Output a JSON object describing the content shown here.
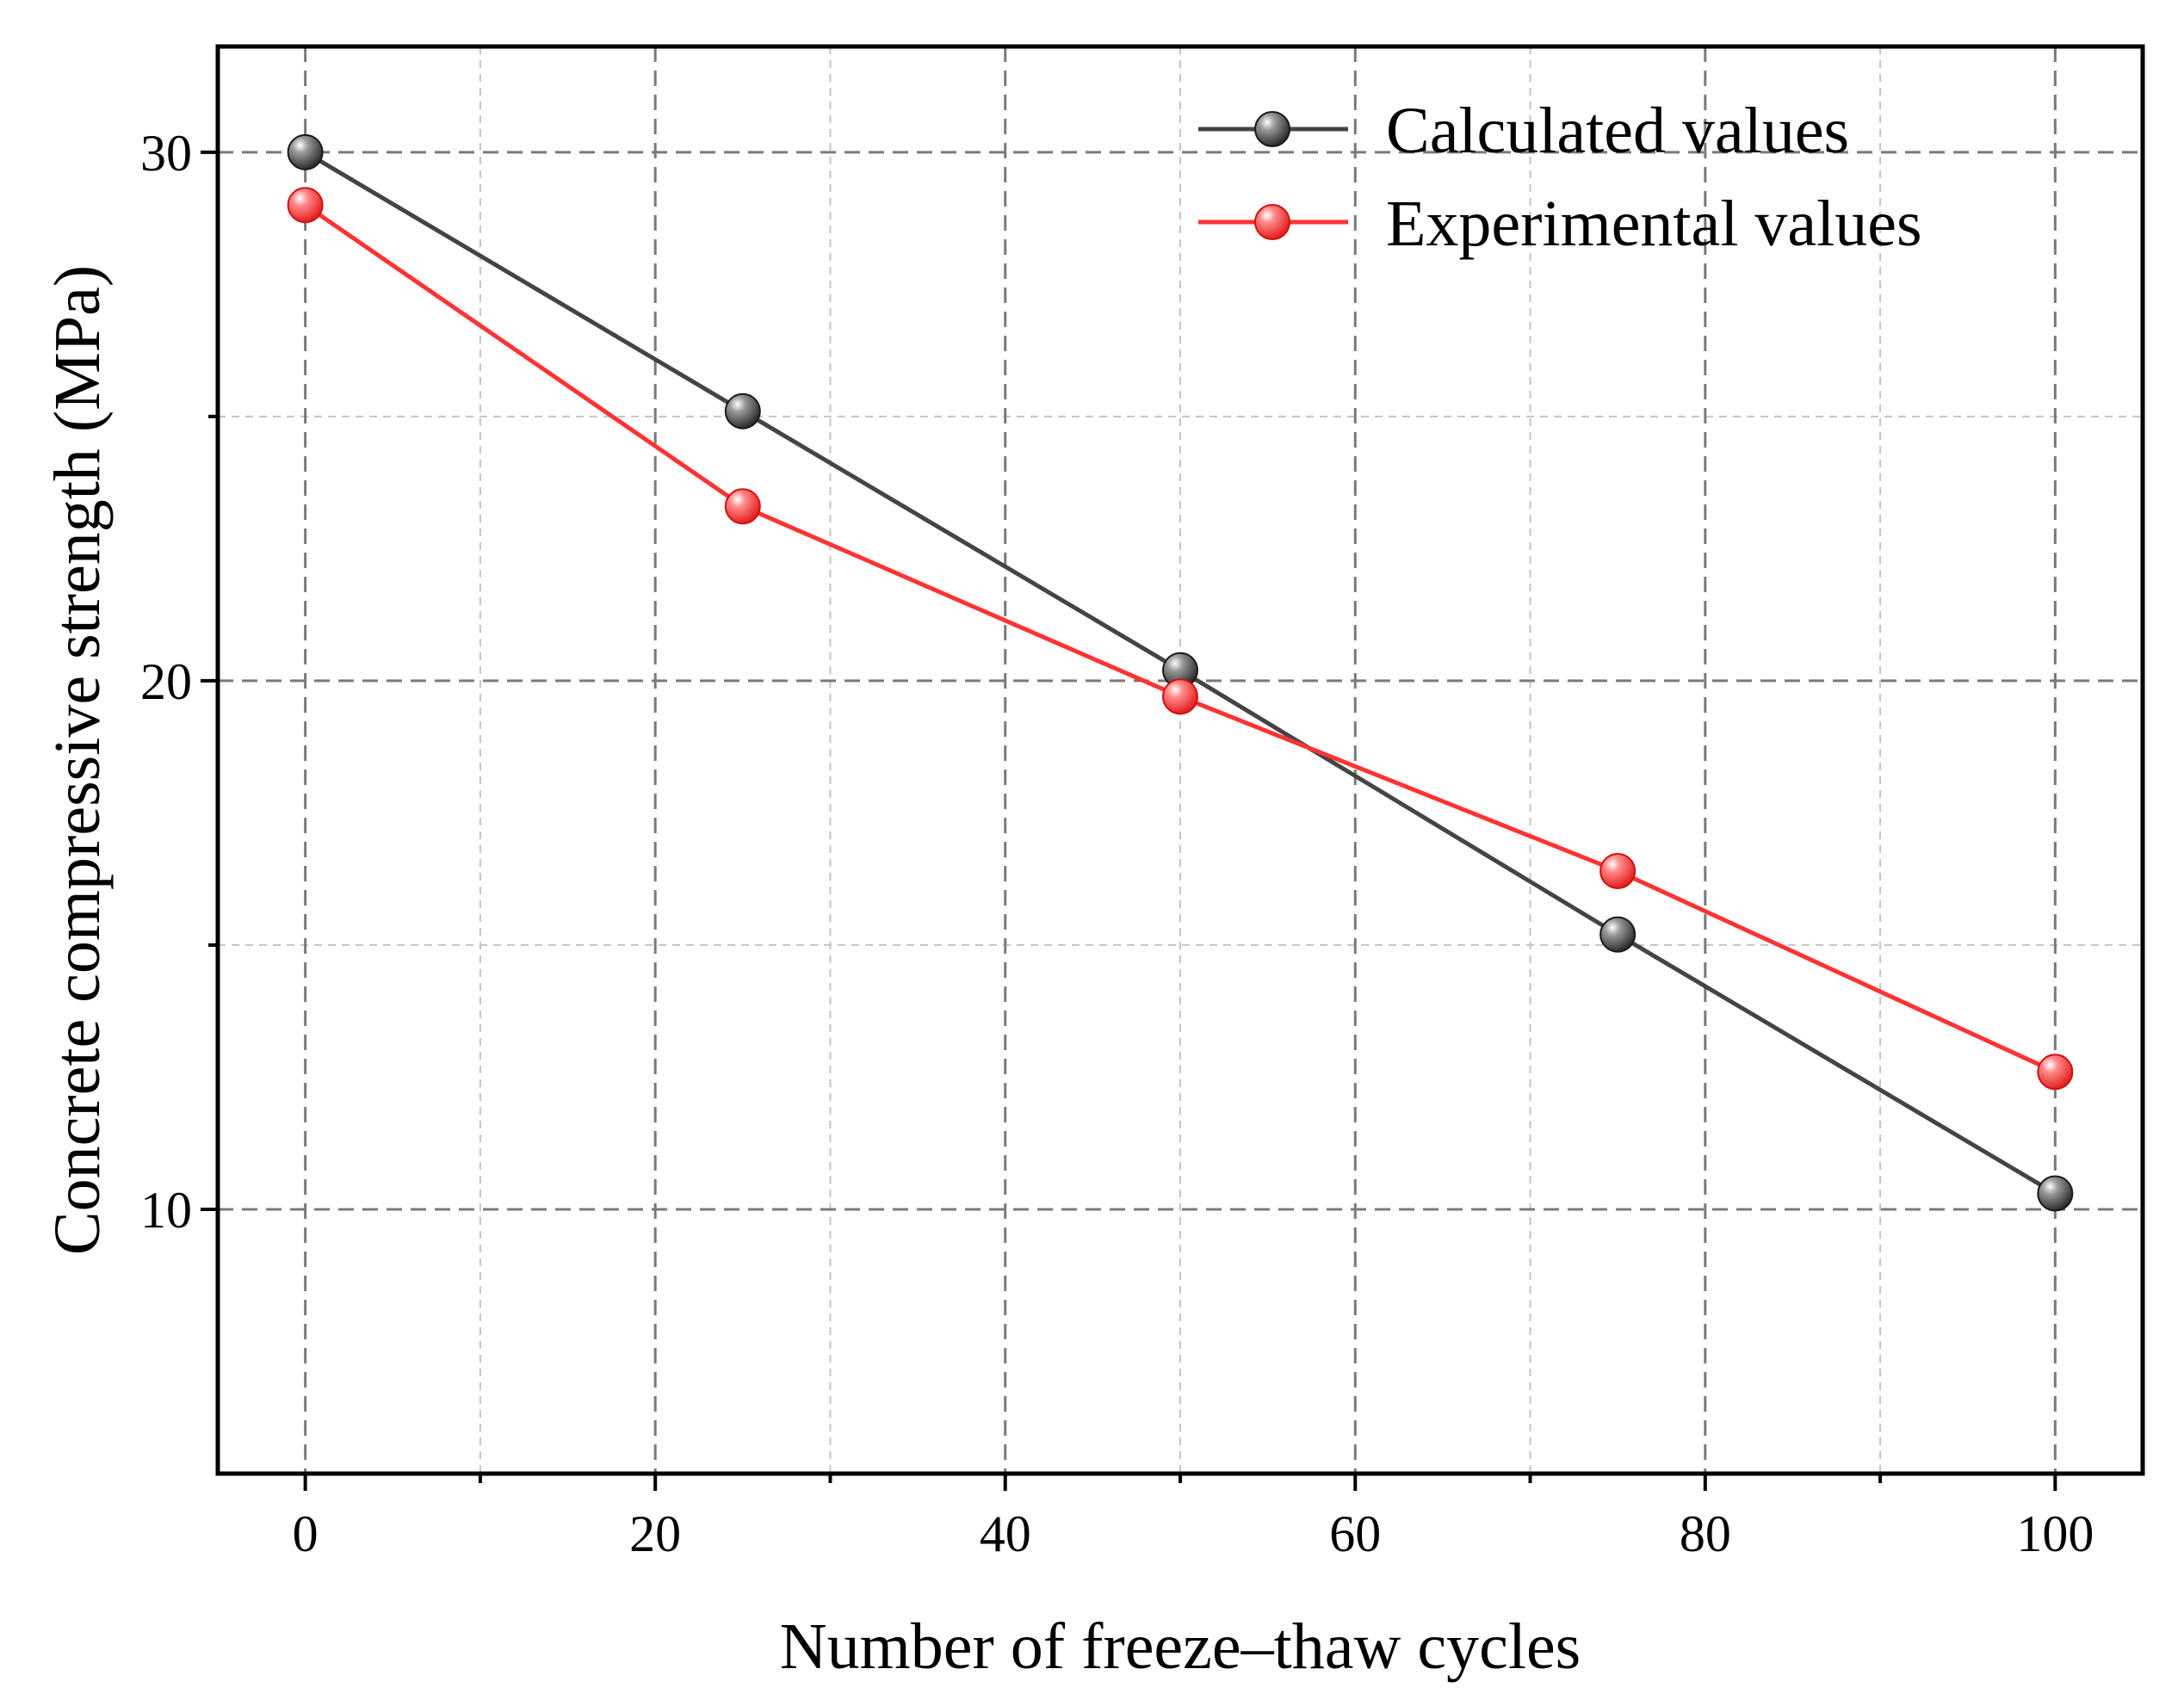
{
  "chart_data": {
    "type": "line",
    "title": "",
    "xlabel": "Number of freeze–thaw cycles",
    "ylabel": "Concrete compressive strength (MPa)",
    "xlim": [
      -5,
      105
    ],
    "ylim": [
      5,
      32
    ],
    "x_major_ticks": [
      0,
      20,
      40,
      60,
      80,
      100
    ],
    "x_minor_ticks": [
      10,
      30,
      50,
      70,
      90
    ],
    "y_major_ticks": [
      10,
      20,
      30
    ],
    "y_minor_ticks": [
      15,
      25
    ],
    "x_tick_labels": [
      "0",
      "20",
      "40",
      "60",
      "80",
      "100"
    ],
    "y_tick_labels": [
      "10",
      "20",
      "30"
    ],
    "grid": true,
    "legend_position": "top-right",
    "x": [
      0,
      25,
      50,
      75,
      100
    ],
    "series": [
      {
        "name": "Calculated values",
        "values": [
          30.0,
          25.1,
          20.2,
          15.2,
          10.3
        ],
        "color": "#444444"
      },
      {
        "name": "Experimental values",
        "values": [
          29.0,
          23.3,
          19.7,
          16.4,
          12.6
        ],
        "color": "#ff3333"
      }
    ]
  }
}
